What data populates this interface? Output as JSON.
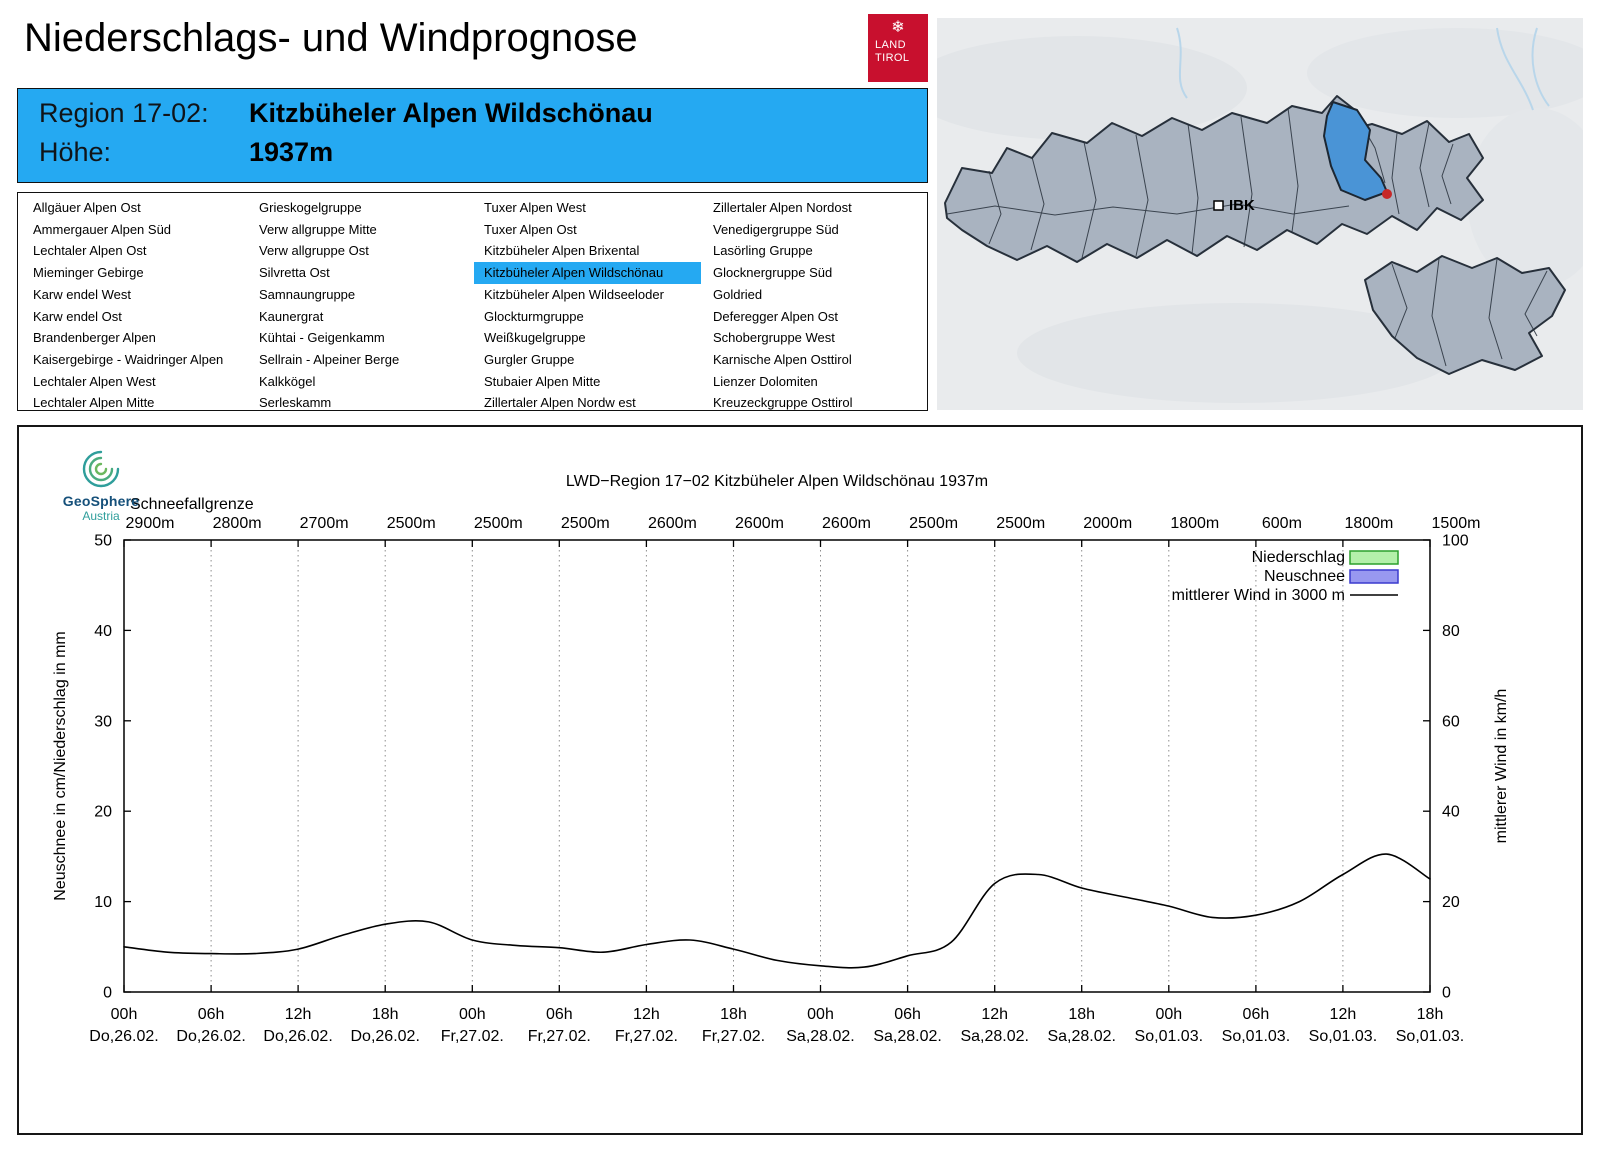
{
  "header": {
    "title": "Niederschlags- und Windprognose",
    "logo": {
      "snowflake": "❄",
      "line1": "LAND",
      "line2": "TIROL",
      "color": "#c8102e"
    }
  },
  "region_box": {
    "region_label": "Region 17-02:",
    "region_name": "Kitzbüheler Alpen Wildschönau",
    "altitude_label": "Höhe:",
    "altitude_value": "1937m",
    "background": "#25a9f2"
  },
  "region_list": {
    "selected": "Kitzbüheler Alpen Wildschönau",
    "columns": [
      [
        "Allgäuer Alpen Ost",
        "Ammergauer Alpen Süd",
        "Lechtaler Alpen Ost",
        "Mieminger Gebirge",
        "Karw endel West",
        "Karw endel Ost",
        "Brandenberger Alpen",
        "Kaisergebirge - Waidringer Alpen",
        "Lechtaler Alpen West",
        "Lechtaler Alpen Mitte"
      ],
      [
        "Grieskogelgruppe",
        "Verw allgruppe Mitte",
        "Verw allgruppe Ost",
        "Silvretta Ost",
        "Samnaungruppe",
        "Kaunergrat",
        "Kühtai - Geigenkamm",
        "Sellrain - Alpeiner Berge",
        "Kalkkögel",
        "Serleskamm"
      ],
      [
        "Tuxer Alpen West",
        "Tuxer Alpen Ost",
        "Kitzbüheler Alpen Brixental",
        "Kitzbüheler Alpen Wildschönau",
        "Kitzbüheler Alpen Wildseeloder",
        "Glockturmgruppe",
        "Weißkugelgruppe",
        "Gurgler Gruppe",
        "Stubaier Alpen Mitte",
        "Zillertaler Alpen Nordw est"
      ],
      [
        "Zillertaler Alpen Nordost",
        "Venedigergruppe Süd",
        "Lasörling Gruppe",
        "Glocknergruppe Süd",
        "Goldried",
        "Deferegger Alpen Ost",
        "Schobergruppe West",
        "Karnische Alpen Osttirol",
        "Lienzer Dolomiten",
        "Kreuzeckgruppe Osttirol"
      ]
    ]
  },
  "map": {
    "city_label": "IBK",
    "colors": {
      "region_fill": "#a9b3c0",
      "selected_fill": "#4a94d6",
      "marker_red": "#c62828",
      "background": "#e9ebed"
    }
  },
  "geosphere": {
    "name": "GeoSphere",
    "country": "Austria"
  },
  "chart_data": {
    "type": "line",
    "title": "LWD−Region 17−02 Kitzbüheler Alpen Wildschönau 1937m",
    "snowline": {
      "label": "Schneefallgrenze",
      "values": [
        "2900m",
        "2800m",
        "2700m",
        "2500m",
        "2500m",
        "2500m",
        "2600m",
        "2600m",
        "2600m",
        "2500m",
        "2500m",
        "2000m",
        "1800m",
        "600m",
        "1800m",
        "1500m"
      ]
    },
    "axes": {
      "left": {
        "label": "Neuschnee in cm/Niederschlag in mm",
        "range": [
          0,
          50
        ],
        "ticks": [
          0,
          10,
          20,
          30,
          40,
          50
        ]
      },
      "right": {
        "label": "mittlerer Wind in km/h",
        "range": [
          0,
          100
        ],
        "ticks": [
          0,
          20,
          40,
          60,
          80,
          100
        ]
      },
      "x": {
        "range_hours": [
          0,
          90
        ],
        "tick_step_hours": 6,
        "hours": [
          "00h",
          "06h",
          "12h",
          "18h",
          "00h",
          "06h",
          "12h",
          "18h",
          "00h",
          "06h",
          "12h",
          "18h",
          "00h",
          "06h",
          "12h",
          "18h"
        ],
        "dates": [
          "Do,26.02.",
          "Do,26.02.",
          "Do,26.02.",
          "Do,26.02.",
          "Fr,27.02.",
          "Fr,27.02.",
          "Fr,27.02.",
          "Fr,27.02.",
          "Sa,28.02.",
          "Sa,28.02.",
          "Sa,28.02.",
          "Sa,28.02.",
          "So,01.03.",
          "So,01.03.",
          "So,01.03.",
          "So,01.03."
        ]
      }
    },
    "legend": [
      {
        "label": "Niederschlag",
        "symbol": "box",
        "fill": "#b4f0aa",
        "stroke": "#2ca02c"
      },
      {
        "label": "Neuschnee",
        "symbol": "box",
        "fill": "#9898f0",
        "stroke": "#3a3ace"
      },
      {
        "label": "mittlerer Wind in 3000 m",
        "symbol": "line",
        "stroke": "#000000"
      }
    ],
    "series": [
      {
        "name": "mittlerer Wind in 3000 m",
        "axis": "right",
        "unit": "km/h",
        "x_hours": [
          0,
          3,
          6,
          9,
          12,
          15,
          18,
          21,
          24,
          27,
          30,
          33,
          36,
          39,
          42,
          45,
          48,
          51,
          54,
          57,
          60,
          63,
          66,
          69,
          72,
          75,
          78,
          81,
          84,
          87,
          90
        ],
        "values_kmh": [
          10,
          8.8,
          8.5,
          8.5,
          9.5,
          12.5,
          15,
          15.5,
          11.5,
          10.3,
          9.8,
          8.8,
          10.5,
          11.5,
          9.5,
          7,
          5.8,
          5.5,
          8,
          11,
          24,
          26,
          23,
          21,
          19,
          16.5,
          17,
          20,
          26,
          30.5,
          25
        ]
      }
    ],
    "precipitation_values_mm": [],
    "new_snow_values_cm": []
  }
}
